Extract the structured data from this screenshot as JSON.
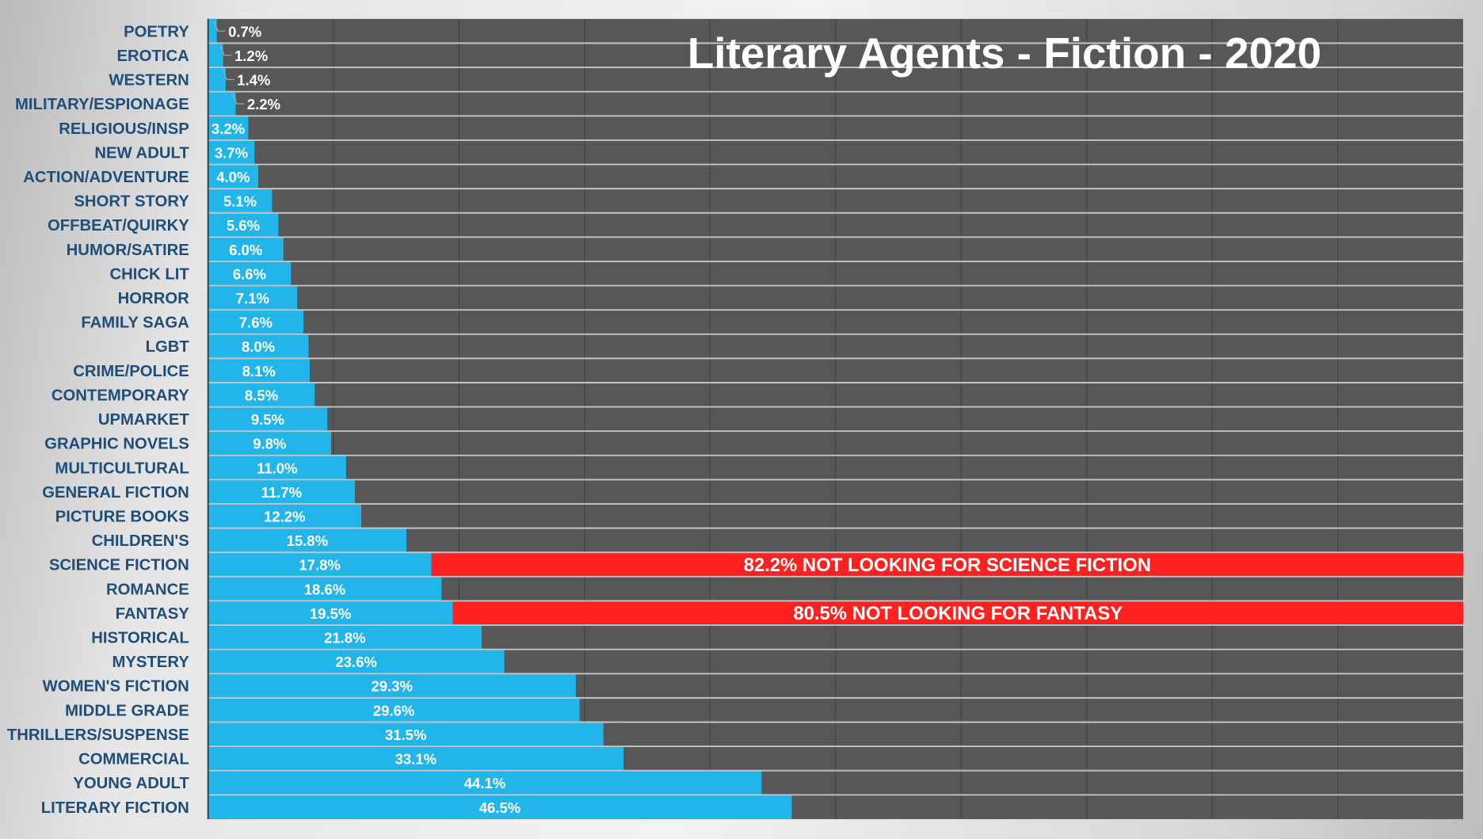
{
  "chart_data": {
    "type": "bar",
    "orientation": "horizontal",
    "title": "Literary Agents - Fiction - 2020",
    "xlabel": "",
    "ylabel": "",
    "xlim": [
      0,
      100
    ],
    "grid": true,
    "categories": [
      "POETRY",
      "EROTICA",
      "WESTERN",
      "MILITARY/ESPIONAGE",
      "RELIGIOUS/INSP",
      "NEW ADULT",
      "ACTION/ADVENTURE",
      "SHORT STORY",
      "OFFBEAT/QUIRKY",
      "HUMOR/SATIRE",
      "CHICK LIT",
      "HORROR",
      "FAMILY SAGA",
      "LGBT",
      "CRIME/POLICE",
      "CONTEMPORARY",
      "UPMARKET",
      "GRAPHIC NOVELS",
      "MULTICULTURAL",
      "GENERAL FICTION",
      "PICTURE BOOKS",
      "CHILDREN'S",
      "SCIENCE FICTION",
      "ROMANCE",
      "FANTASY",
      "HISTORICAL",
      "MYSTERY",
      "WOMEN'S FICTION",
      "MIDDLE GRADE",
      "THRILLERS/SUSPENSE",
      "COMMERCIAL",
      "YOUNG ADULT",
      "LITERARY FICTION"
    ],
    "values": [
      0.7,
      1.2,
      1.4,
      2.2,
      3.2,
      3.7,
      4.0,
      5.1,
      5.6,
      6.0,
      6.6,
      7.1,
      7.6,
      8.0,
      8.1,
      8.5,
      9.5,
      9.8,
      11.0,
      11.7,
      12.2,
      15.8,
      17.8,
      18.6,
      19.5,
      21.8,
      23.6,
      29.3,
      29.6,
      31.5,
      33.1,
      44.1,
      46.5
    ],
    "labels": [
      "0.7%",
      "1.2%",
      "1.4%",
      "2.2%",
      "3.2%",
      "3.7%",
      "4.0%",
      "5.1%",
      "5.6%",
      "6.0%",
      "6.6%",
      "7.1%",
      "7.6%",
      "8.0%",
      "8.1%",
      "8.5%",
      "9.5%",
      "9.8%",
      "11.0%",
      "11.7%",
      "12.2%",
      "15.8%",
      "17.8%",
      "18.6%",
      "19.5%",
      "21.8%",
      "23.6%",
      "29.3%",
      "29.6%",
      "31.5%",
      "33.1%",
      "44.1%",
      "46.5%"
    ],
    "annotations": [
      {
        "category": "SCIENCE FICTION",
        "value": 82.2,
        "text": "82.2% NOT LOOKING FOR SCIENCE FICTION"
      },
      {
        "category": "FANTASY",
        "value": 80.5,
        "text": "80.5% NOT LOOKING FOR FANTASY"
      }
    ],
    "colors": {
      "bar": "#22b5ea",
      "remainder": "#575757",
      "highlight": "#ff2020",
      "label": "#1f4e79"
    }
  }
}
